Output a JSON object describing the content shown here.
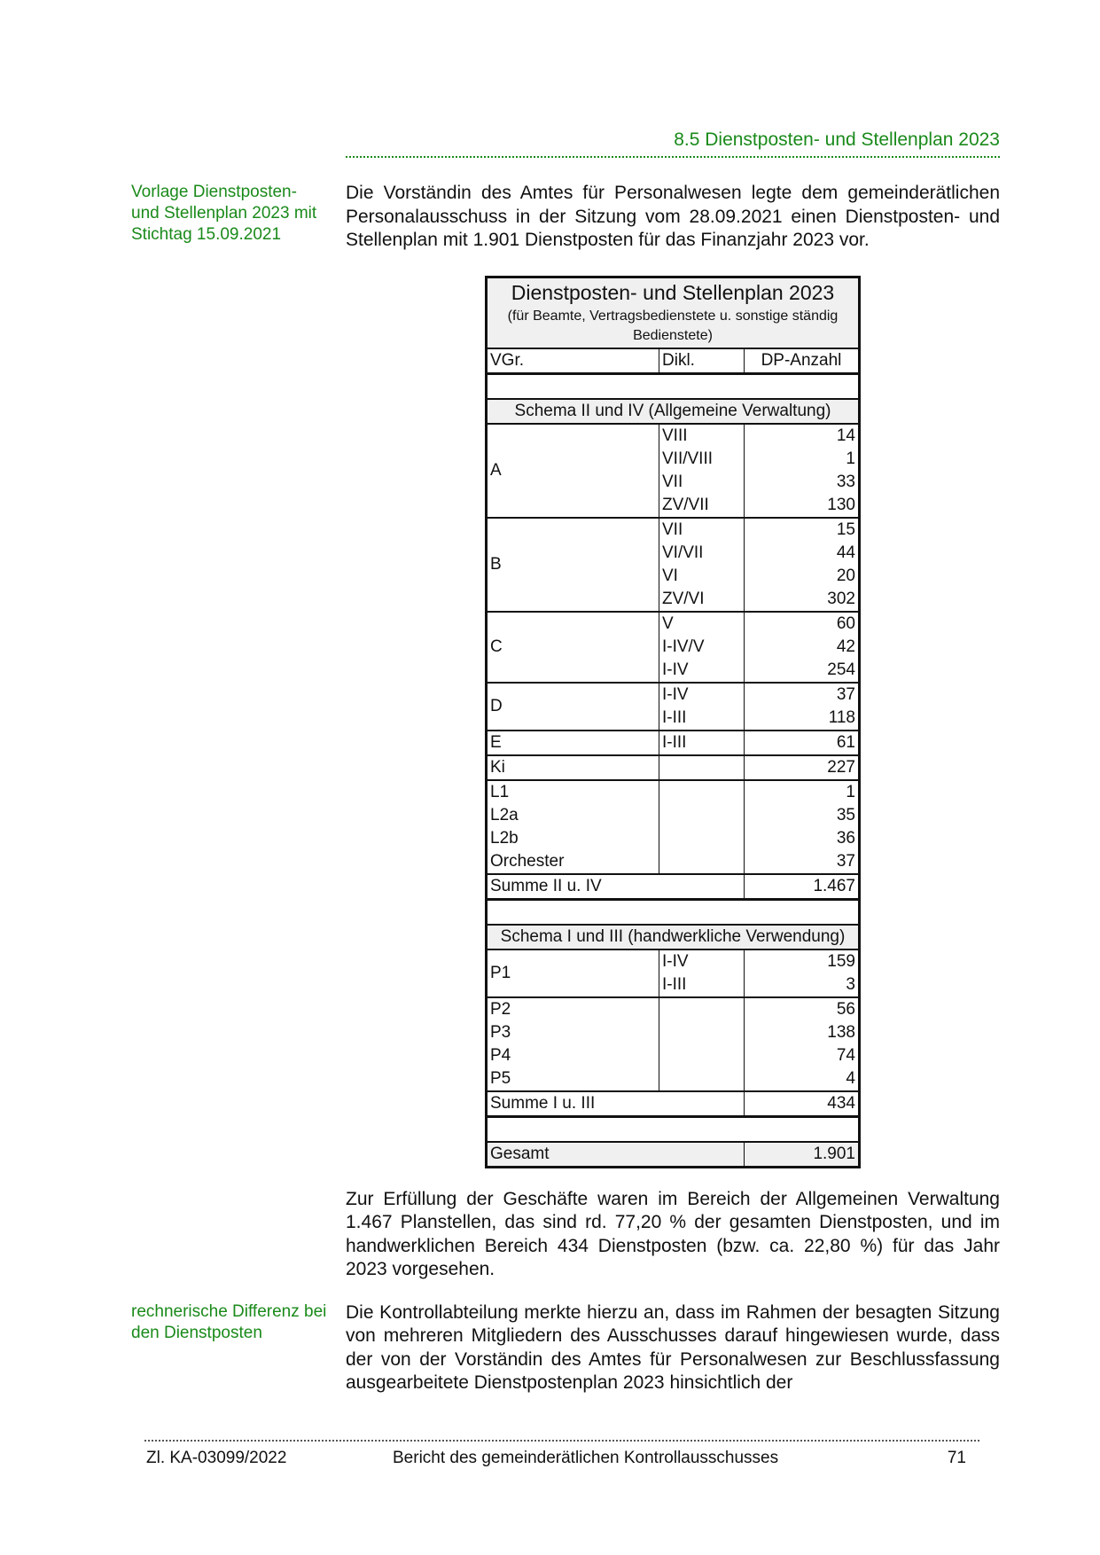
{
  "header": {
    "section": "8.5  Dienstposten- und Stellenplan 2023"
  },
  "sidenotes": [
    {
      "text": "Vorlage Dienstposten- und Stellenplan 2023 mit Stichtag 15.09.2021"
    },
    {
      "text": "rechnerische Differenz bei den Dienstposten"
    }
  ],
  "paragraphs": [
    "Die Vorständin des Amtes für Personalwesen legte dem gemeinde­rätlichen Personalausschuss in der Sitzung vom 28.09.2021 einen Dienstposten- und Stellenplan mit 1.901 Dienstposten für das Finanzjahr 2023 vor.",
    "Zur Erfüllung der Geschäfte waren im Bereich der Allgemeinen Verwaltung 1.467 Planstellen, das sind rd. 77,20 % der gesamten Dienst­posten, und im handwerklichen Bereich 434 Dienstposten (bzw. ca. 22,80 %) für das Jahr 2023 vorgesehen.",
    "Die Kontrollabteilung merkte hierzu an, dass im Rahmen der besagten Sitzung von mehreren Mitgliedern des Ausschusses darauf hingewiesen wurde, dass der von der Vorständin des Amtes für Personalwesen zur Beschlussfassung ausgearbeitete Dienstpostenplan 2023 hinsichtlich der"
  ],
  "table": {
    "title": "Dienstposten- und Stellenplan 2023",
    "subtitle": "(für Beamte, Vertragsbedienstete u. sonstige ständig Bedienstete)",
    "columns": [
      "VGr.",
      "Dikl.",
      "DP-Anzahl"
    ],
    "sections": [
      {
        "label": "Schema II und IV (Allgemeine Verwaltung)",
        "blocks": [
          {
            "type": "group",
            "vgr": "A",
            "rows": [
              [
                "VIII",
                "14"
              ],
              [
                "VII/VIII",
                "1"
              ],
              [
                "VII",
                "33"
              ],
              [
                "ZV/VII",
                "130"
              ]
            ]
          },
          {
            "type": "group",
            "vgr": "B",
            "rows": [
              [
                "VII",
                "15"
              ],
              [
                "VI/VII",
                "44"
              ],
              [
                "VI",
                "20"
              ],
              [
                "ZV/VI",
                "302"
              ]
            ]
          },
          {
            "type": "group",
            "vgr": "C",
            "rows": [
              [
                "V",
                "60"
              ],
              [
                "I-IV/V",
                "42"
              ],
              [
                "I-IV",
                "254"
              ]
            ]
          },
          {
            "type": "group",
            "vgr": "D",
            "rows": [
              [
                "I-IV",
                "37"
              ],
              [
                "I-III",
                "118"
              ]
            ]
          },
          {
            "type": "group",
            "vgr": "E",
            "rows": [
              [
                "I-III",
                "61"
              ]
            ]
          },
          {
            "type": "list",
            "rows": [
              [
                "Ki",
                "227"
              ]
            ]
          },
          {
            "type": "list",
            "rows": [
              [
                "L1",
                "1"
              ],
              [
                "L2a",
                "35"
              ],
              [
                "L2b",
                "36"
              ],
              [
                "Orchester",
                "37"
              ]
            ]
          }
        ],
        "sum_label": "Summe II u. IV",
        "sum_value": "1.467"
      },
      {
        "label": "Schema I und III (handwerkliche Verwendung)",
        "blocks": [
          {
            "type": "group",
            "vgr": "P1",
            "rows": [
              [
                "I-IV",
                "159"
              ],
              [
                "I-III",
                "3"
              ]
            ]
          },
          {
            "type": "list",
            "rows": [
              [
                "P2",
                "56"
              ],
              [
                "P3",
                "138"
              ],
              [
                "P4",
                "74"
              ],
              [
                "P5",
                "4"
              ]
            ]
          }
        ],
        "sum_label": "Summe I u. III",
        "sum_value": "434"
      }
    ],
    "total_label": "Gesamt",
    "total_value": "1.901"
  },
  "footer": {
    "ref": "Zl. KA-03099/2022",
    "title": "Bericht des gemeinderätlichen Kontrollausschusses",
    "page": "71"
  }
}
